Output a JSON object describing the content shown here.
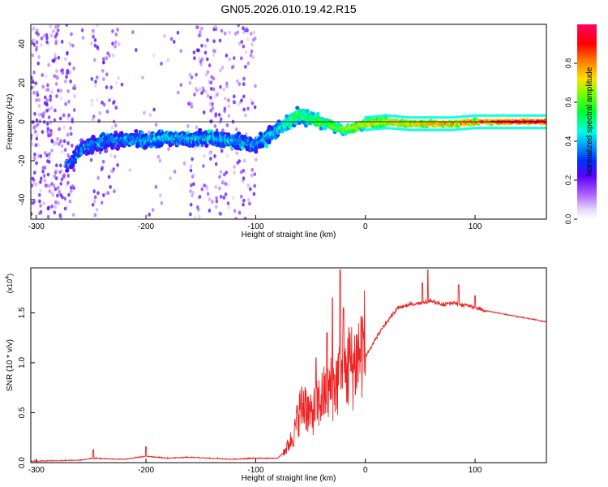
{
  "title": "GN05.2026.010.19.42.R15",
  "chart_data": [
    {
      "type": "heatmap",
      "xlabel": "Height of straight line (km)",
      "ylabel": "Frequency (Hz)",
      "xlim": [
        -305,
        165
      ],
      "ylim": [
        -50,
        50
      ],
      "x_ticks": [
        -300,
        -200,
        -100,
        0,
        100
      ],
      "y_ticks": [
        -40,
        -20,
        0,
        20,
        40
      ],
      "colorbar": {
        "label": "Normalized spectral amplitude",
        "range": [
          0.0,
          1.0
        ],
        "ticks": [
          0.0,
          0.2,
          0.4,
          0.6,
          0.8
        ],
        "tick_labels": [
          "0.0",
          "0.2",
          "0.4",
          "0.6",
          "0.8"
        ],
        "colors": [
          "#ffffff",
          "#c9a6f0",
          "#9b30ff",
          "#5000ff",
          "#0050ff",
          "#00ffff",
          "#00ff40",
          "#a0ff00",
          "#ffd000",
          "#ff5000",
          "#ff0000",
          "#ff0050"
        ]
      },
      "ridge": {
        "description": "dominant signal frequency vs height",
        "x": [
          -270,
          -260,
          -240,
          -220,
          -200,
          -180,
          -160,
          -140,
          -120,
          -100,
          -90,
          -80,
          -70,
          -60,
          -50,
          -40,
          -30,
          -20,
          -10,
          0,
          20,
          40,
          60,
          80,
          100,
          120,
          140,
          160
        ],
        "y": [
          -22,
          -14,
          -10,
          -9,
          -10,
          -8,
          -9,
          -8,
          -10,
          -12,
          -8,
          -4,
          0,
          3,
          2,
          0,
          -2,
          -4,
          -3,
          -1,
          0,
          -1,
          -1,
          -1,
          0,
          0,
          0,
          0
        ],
        "amplitude": [
          0.3,
          0.32,
          0.35,
          0.35,
          0.38,
          0.4,
          0.38,
          0.4,
          0.38,
          0.36,
          0.4,
          0.42,
          0.5,
          0.55,
          0.55,
          0.6,
          0.62,
          0.65,
          0.7,
          0.72,
          0.74,
          0.78,
          0.8,
          0.82,
          0.85,
          0.95,
          0.97,
          0.97
        ]
      }
    },
    {
      "type": "line",
      "xlabel": "Height of straight line (km)",
      "ylabel": "SNR (10 * v/v)",
      "y_multiplier": "(x10",
      "y_multiplier_exp": "4",
      "y_multiplier_close": ")",
      "xlim": [
        -305,
        165
      ],
      "ylim": [
        0,
        1.95
      ],
      "x_ticks": [
        -300,
        -200,
        -100,
        0,
        100
      ],
      "y_ticks": [
        0.0,
        0.5,
        1.0,
        1.5
      ],
      "y_tick_labels": [
        "0.0",
        "0.5",
        "1.0",
        "1.5"
      ],
      "color": "#ee2222",
      "envelope": {
        "x": [
          -305,
          -260,
          -250,
          -220,
          -200,
          -180,
          -160,
          -120,
          -100,
          -80,
          -72,
          -65,
          -60,
          -55,
          -50,
          -40,
          -30,
          -20,
          -10,
          0,
          10,
          20,
          30,
          40,
          50,
          60,
          70,
          80,
          90,
          100,
          110,
          120,
          140,
          165
        ],
        "y": [
          0.01,
          0.02,
          0.04,
          0.03,
          0.06,
          0.04,
          0.05,
          0.03,
          0.04,
          0.04,
          0.12,
          0.25,
          0.45,
          0.5,
          0.4,
          0.55,
          0.65,
          0.75,
          0.85,
          1.05,
          1.25,
          1.42,
          1.55,
          1.58,
          1.6,
          1.62,
          1.58,
          1.6,
          1.58,
          1.55,
          1.52,
          1.5,
          1.46,
          1.41
        ]
      },
      "spikes": [
        {
          "x": -23,
          "y": 1.93
        },
        {
          "x": -30,
          "y": 1.65
        },
        {
          "x": -20,
          "y": 1.55
        },
        {
          "x": -35,
          "y": 1.3
        },
        {
          "x": -45,
          "y": 1.05
        },
        {
          "x": -15,
          "y": 1.35
        },
        {
          "x": -55,
          "y": 0.75
        },
        {
          "x": 57,
          "y": 1.93
        },
        {
          "x": 52,
          "y": 1.8
        },
        {
          "x": 85,
          "y": 1.78
        },
        {
          "x": 100,
          "y": 1.67
        },
        {
          "x": -200,
          "y": 0.16
        },
        {
          "x": -248,
          "y": 0.13
        }
      ]
    }
  ]
}
